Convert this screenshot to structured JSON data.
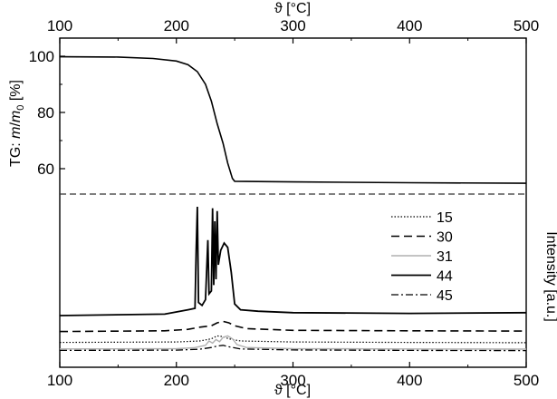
{
  "chart_data": {
    "type": "line",
    "x_axis": {
      "label": "ϑ [°C]",
      "range": [
        100,
        500
      ],
      "ticks": [
        100,
        200,
        300,
        400,
        500
      ],
      "tick_labels": [
        "100",
        "200",
        "300",
        "400",
        "500"
      ],
      "shown_top_and_bottom": true
    },
    "tg_panel": {
      "ylabel_prefix": "TG: ",
      "ylabel_m": "m",
      "ylabel_slash": "/",
      "ylabel_m0": "m",
      "ylabel_sub": "0",
      "ylabel_unit": " [%]",
      "ylim": [
        50,
        105
      ],
      "yticks": [
        60,
        80,
        100
      ],
      "ytick_labels": [
        "60",
        "80",
        "100"
      ],
      "series": [
        {
          "style": "solid",
          "color": "#000000",
          "points": [
            [
              100,
              99.8
            ],
            [
              150,
              99.7
            ],
            [
              180,
              99.2
            ],
            [
              200,
              98.3
            ],
            [
              210,
              97.0
            ],
            [
              218,
              94.5
            ],
            [
              225,
              90.0
            ],
            [
              230,
              84.0
            ],
            [
              235,
              76.0
            ],
            [
              240,
              69.0
            ],
            [
              244,
              62.0
            ],
            [
              248,
              56.5
            ],
            [
              250,
              55.5
            ],
            [
              300,
              55.3
            ],
            [
              400,
              55.0
            ],
            [
              500,
              54.8
            ]
          ]
        }
      ]
    },
    "separator": {
      "style": "dashed",
      "color": "#333333"
    },
    "ms_panel": {
      "ylabel": "Intensity [a.u.]",
      "yticks": [],
      "legend_position": "upper right",
      "series": [
        {
          "name": "15",
          "style": "dotted",
          "color": "#000000",
          "points": [
            [
              100,
              0.065
            ],
            [
              200,
              0.068
            ],
            [
              220,
              0.075
            ],
            [
              230,
              0.09
            ],
            [
              235,
              0.11
            ],
            [
              240,
              0.105
            ],
            [
              245,
              0.09
            ],
            [
              255,
              0.075
            ],
            [
              300,
              0.068
            ],
            [
              400,
              0.065
            ],
            [
              500,
              0.063
            ]
          ]
        },
        {
          "name": "30",
          "style": "dashed",
          "color": "#000000",
          "points": [
            [
              100,
              0.14
            ],
            [
              190,
              0.145
            ],
            [
              210,
              0.155
            ],
            [
              220,
              0.17
            ],
            [
              230,
              0.18
            ],
            [
              235,
              0.2
            ],
            [
              240,
              0.21
            ],
            [
              245,
              0.2
            ],
            [
              250,
              0.18
            ],
            [
              260,
              0.16
            ],
            [
              300,
              0.148
            ],
            [
              400,
              0.145
            ],
            [
              500,
              0.143
            ]
          ]
        },
        {
          "name": "31",
          "style": "solid",
          "color": "#b0b0b0",
          "points": [
            [
              100,
              0.02
            ],
            [
              200,
              0.022
            ],
            [
              215,
              0.028
            ],
            [
              225,
              0.045
            ],
            [
              228,
              0.075
            ],
            [
              231,
              0.06
            ],
            [
              234,
              0.085
            ],
            [
              237,
              0.07
            ],
            [
              240,
              0.1
            ],
            [
              244,
              0.11
            ],
            [
              248,
              0.09
            ],
            [
              252,
              0.05
            ],
            [
              260,
              0.03
            ],
            [
              300,
              0.022
            ],
            [
              400,
              0.02
            ],
            [
              500,
              0.019
            ]
          ]
        },
        {
          "name": "44",
          "style": "solid",
          "color": "#000000",
          "points": [
            [
              100,
              0.25
            ],
            [
              190,
              0.26
            ],
            [
              200,
              0.275
            ],
            [
              210,
              0.29
            ],
            [
              216,
              0.3
            ],
            [
              217,
              0.7
            ],
            [
              218,
              1.0
            ],
            [
              219,
              0.34
            ],
            [
              222,
              0.32
            ],
            [
              225,
              0.36
            ],
            [
              227,
              0.77
            ],
            [
              228,
              0.4
            ],
            [
              230,
              0.42
            ],
            [
              231,
              0.99
            ],
            [
              232,
              0.46
            ],
            [
              233,
              0.9
            ],
            [
              234,
              0.5
            ],
            [
              235,
              0.97
            ],
            [
              236,
              0.6
            ],
            [
              238,
              0.7
            ],
            [
              241,
              0.75
            ],
            [
              244,
              0.72
            ],
            [
              247,
              0.55
            ],
            [
              250,
              0.33
            ],
            [
              255,
              0.29
            ],
            [
              270,
              0.28
            ],
            [
              300,
              0.27
            ],
            [
              400,
              0.265
            ],
            [
              500,
              0.27
            ]
          ]
        },
        {
          "name": "45",
          "style": "dashdot",
          "color": "#000000",
          "points": [
            [
              100,
              0.01
            ],
            [
              200,
              0.012
            ],
            [
              220,
              0.018
            ],
            [
              230,
              0.03
            ],
            [
              235,
              0.04
            ],
            [
              240,
              0.045
            ],
            [
              245,
              0.035
            ],
            [
              255,
              0.02
            ],
            [
              300,
              0.013
            ],
            [
              400,
              0.01
            ],
            [
              500,
              0.009
            ]
          ]
        }
      ]
    }
  }
}
